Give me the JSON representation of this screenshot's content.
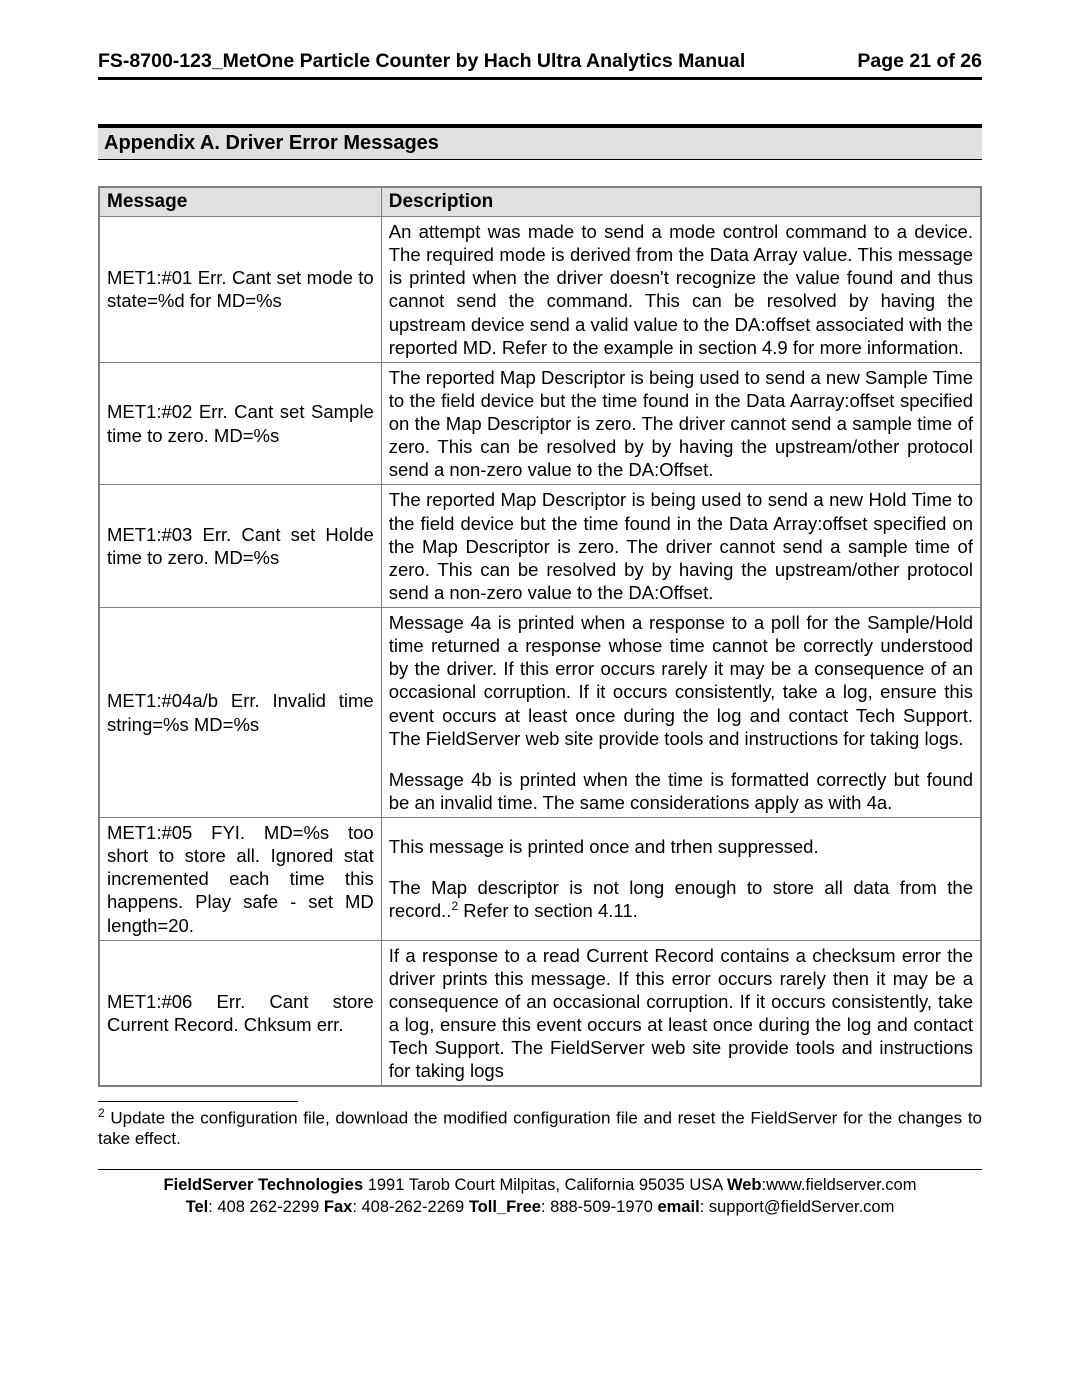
{
  "header": {
    "title": "FS-8700-123_MetOne Particle Counter by Hach Ultra Analytics Manual",
    "page": "Page 21 of 26"
  },
  "section": {
    "title": "Appendix A. Driver Error Messages"
  },
  "table": {
    "headers": {
      "message": "Message",
      "description": "Description"
    },
    "rows": [
      {
        "msg": "MET1:#01 Err. Cant set mode to state=%d for MD=%s",
        "desc": "An attempt was made to send a mode control command to a device. The required mode is derived from the Data Array value. This message is printed when the driver doesn't recognize the value found and thus cannot send the command.  This can be resolved by having the upstream device send a valid value to the DA:offset associated with the reported MD.  Refer to the example in section 4.9 for more information."
      },
      {
        "msg": "MET1:#02 Err. Cant set Sample time to zero. MD=%s",
        "desc": "The reported Map Descriptor is being used to send a new Sample Time to the field device but the time found in the Data Aarray:offset specified on the Map Descriptor is zero. The driver cannot send a sample time of zero. This can be resolved by by having the upstream/other protocol send a non-zero value to the DA:Offset."
      },
      {
        "msg": "MET1:#03 Err. Cant set Holde time to zero. MD=%s",
        "desc": "The reported Map Descriptor is being used to send a new Hold Time to the field device but the time found in the Data Array:offset specified on the Map Descriptor is zero. The driver cannot send a sample time of zero. This can be resolved by by having the upstream/other protocol send a non-zero value to the DA:Offset."
      },
      {
        "msg": "MET1:#04a/b Err. Invalid time string=%s MD=%s",
        "desc_p1": "Message 4a is printed when a response to a poll for the Sample/Hold time returned a response whose time cannot be correctly understood by the driver.  If this error occurs rarely it may be a consequence of an occasional corruption.  If it occurs consistently, take a log, ensure this event occurs at least once during the log and contact Tech Support. The FieldServer web site provide tools and instructions for taking logs.",
        "desc_p2": "Message 4b is printed when the time is formatted correctly but found be an invalid time. The same considerations apply as with 4a."
      },
      {
        "msg": "MET1:#05 FYI. MD=%s too short to store all. Ignored stat incremented each time this happens. Play safe - set MD length=20.",
        "desc_p1": "This message is printed once and trhen suppressed.",
        "desc_p2a": "The Map descriptor is not long enough to store all data from the record..",
        "desc_p2b": "   Refer to section 4.11."
      },
      {
        "msg": "MET1:#06 Err. Cant store Current Record. Chksum err.",
        "desc": "If a response to a read Current Record contains a checksum error the driver prints this message.\nIf this error occurs rarely then it may be a consequence of an occasional corruption. If it occurs consistently, take a log, ensure this event occurs at least once during the log and contact Tech Support. The FieldServer web site provide tools and instructions for taking logs"
      }
    ]
  },
  "footnote": {
    "marker": "2",
    "text": " Update the configuration file, download the modified configuration file and reset the FieldServer for the changes to take effect."
  },
  "footer": {
    "line1_prefix": "FieldServer Technologies",
    "line1_rest": " 1991 Tarob Court Milpitas, California 95035 USA ",
    "web_label": "Web",
    "web_value": ":www.fieldserver.com",
    "tel_label": "Tel",
    "tel_value": ": 408 262-2299   ",
    "fax_label": "Fax",
    "fax_value": ": 408-262-2269  ",
    "toll_label": "Toll_Free",
    "toll_value": ": 888-509-1970  ",
    "email_label": "email",
    "email_value": ": support@fieldServer.com"
  }
}
